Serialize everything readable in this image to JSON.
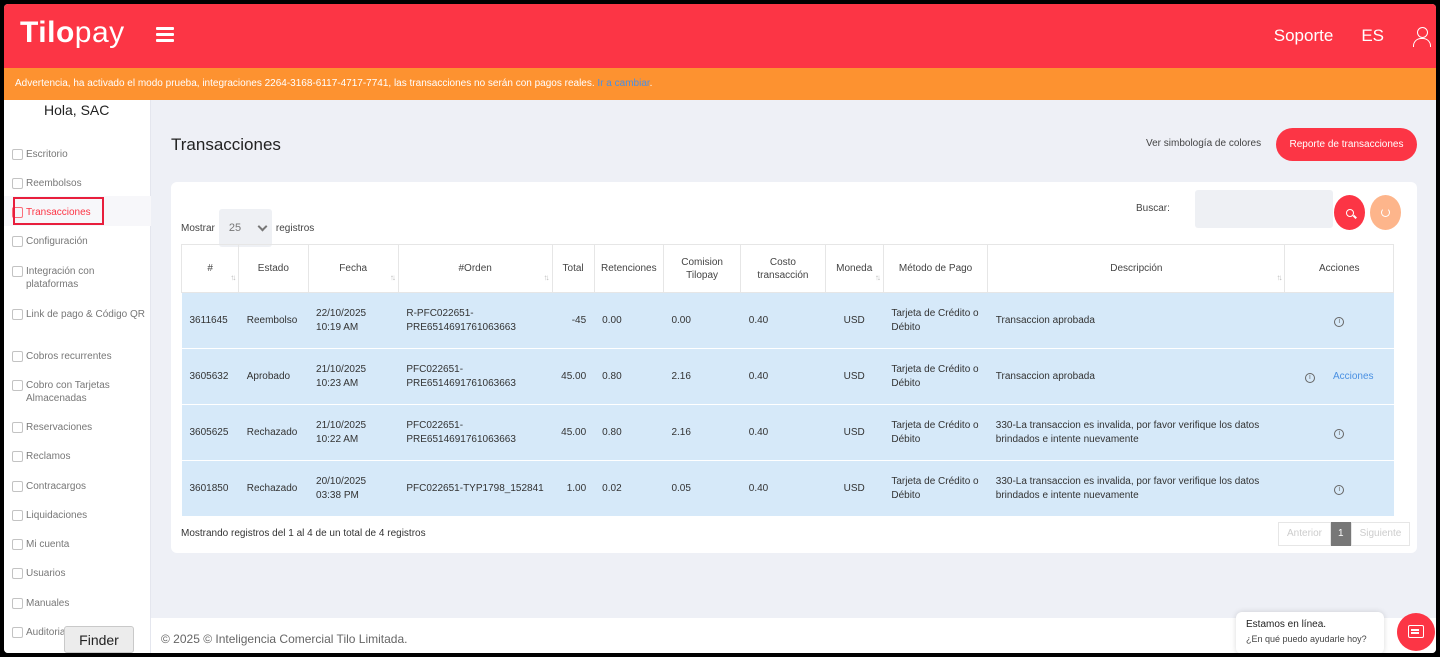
{
  "header": {
    "logo_bold": "Tilo",
    "logo_light": "pay",
    "support": "Soporte",
    "language": "ES"
  },
  "warning": {
    "text": "Advertencia, ha activado el modo prueba, integraciones 2264-3168-6117-4717-7741, las transacciones no serán con pagos reales. ",
    "link": "Ir a cambiar",
    "suffix": "."
  },
  "sidebar": {
    "greeting": "Hola, SAC",
    "items": [
      {
        "label": "Escritorio",
        "icon": "dashboard-icon"
      },
      {
        "label": "Reembolsos",
        "icon": "refund-icon"
      },
      {
        "label": "Transacciones",
        "icon": "document-icon"
      },
      {
        "label": "Configuración",
        "icon": "settings-icon"
      },
      {
        "label": "Integración con plataformas",
        "icon": "cart-icon"
      },
      {
        "label": "Link de pago & Código QR",
        "icon": "link-icon"
      },
      {
        "label": "Cobros recurrentes",
        "icon": "recurring-icon"
      },
      {
        "label": "Cobro con Tarjetas Almacenadas",
        "icon": "cards-icon"
      },
      {
        "label": "Reservaciones",
        "icon": "reservation-icon"
      },
      {
        "label": "Reclamos",
        "icon": "complaint-icon"
      },
      {
        "label": "Contracargos",
        "icon": "chargeback-icon"
      },
      {
        "label": "Liquidaciones",
        "icon": "settlement-icon"
      },
      {
        "label": "Mi cuenta",
        "icon": "account-icon"
      },
      {
        "label": "Usuarios",
        "icon": "users-icon"
      },
      {
        "label": "Manuales",
        "icon": "info-icon"
      },
      {
        "label": "Auditoria",
        "icon": "audit-icon"
      }
    ],
    "active_index": 2
  },
  "main": {
    "title": "Transacciones",
    "color_legend_link": "Ver simbología de colores",
    "report_button": "Reporte de transacciones",
    "show_label": "Mostrar",
    "show_value": "25",
    "records_label": "registros",
    "search_label": "Buscar:",
    "search_value": ""
  },
  "table": {
    "columns": [
      "#",
      "Estado",
      "Fecha",
      "#Orden",
      "Total",
      "Retenciones",
      "Comision Tilopay",
      "Costo transacción",
      "Moneda",
      "Método de Pago",
      "Descripción",
      "Acciones"
    ],
    "rows": [
      {
        "id": "3611645",
        "estado": "Reembolso",
        "fecha": "22/10/2025 10:19 AM",
        "orden": "R-PFC022651-PRE6514691761063663",
        "total": "-45",
        "retenciones": "0.00",
        "comision": "0.00",
        "costo": "0.40",
        "moneda": "USD",
        "metodo": "Tarjeta de Crédito o Débito",
        "descripcion": "Transaccion aprobada",
        "accion": ""
      },
      {
        "id": "3605632",
        "estado": "Aprobado",
        "fecha": "21/10/2025 10:23 AM",
        "orden": "PFC022651-PRE6514691761063663",
        "total": "45.00",
        "retenciones": "0.80",
        "comision": "2.16",
        "costo": "0.40",
        "moneda": "USD",
        "metodo": "Tarjeta de Crédito o Débito",
        "descripcion": "Transaccion aprobada",
        "accion": "Acciones"
      },
      {
        "id": "3605625",
        "estado": "Rechazado",
        "fecha": "21/10/2025 10:22 AM",
        "orden": "PFC022651-PRE6514691761063663",
        "total": "45.00",
        "retenciones": "0.80",
        "comision": "2.16",
        "costo": "0.40",
        "moneda": "USD",
        "metodo": "Tarjeta de Crédito o Débito",
        "descripcion": "330-La transaccion es invalida, por favor verifique los datos brindados e intente nuevamente",
        "accion": ""
      },
      {
        "id": "3601850",
        "estado": "Rechazado",
        "fecha": "20/10/2025 03:38 PM",
        "orden": "PFC022651-TYP1798_152841",
        "total": "1.00",
        "retenciones": "0.02",
        "comision": "0.05",
        "costo": "0.40",
        "moneda": "USD",
        "metodo": "Tarjeta de Crédito o Débito",
        "descripcion": "330-La transaccion es invalida, por favor verifique los datos brindados e intente nuevamente",
        "accion": ""
      }
    ],
    "footer": "Mostrando registros del 1 al 4 de un total de 4 registros",
    "prev": "Anterior",
    "page": "1",
    "next": "Siguiente"
  },
  "footer": {
    "copyright": "© 2025 © Inteligencia Comercial Tilo Limitada."
  },
  "chat": {
    "line1": "Estamos en línea.",
    "line2": "¿En qué puedo ayudarle hoy?"
  },
  "dock": {
    "finder": "Finder"
  },
  "colors": {
    "brand": "#fc3545",
    "warning": "#fd9230",
    "row": "#d6e9f9"
  }
}
